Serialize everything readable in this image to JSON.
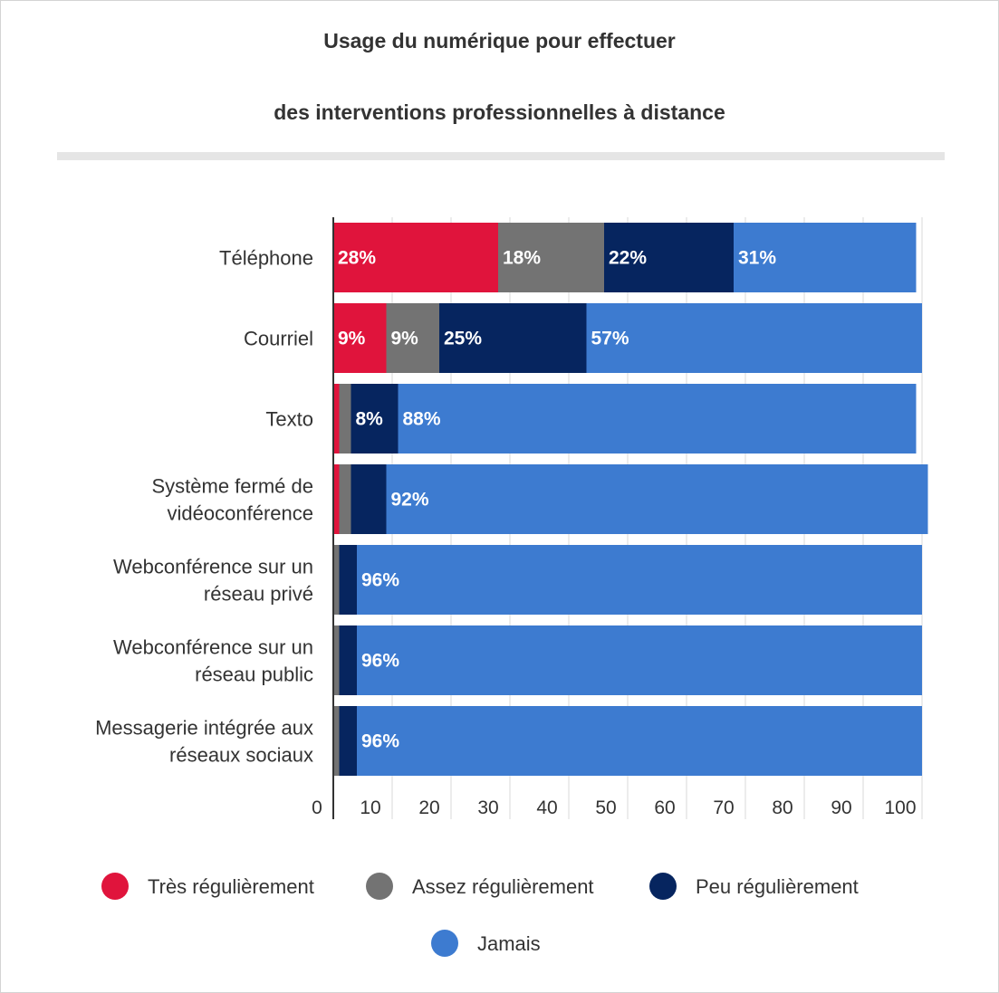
{
  "chart_data": {
    "type": "bar",
    "orientation": "horizontal",
    "stacked": true,
    "title": [
      "Usage du numérique pour effectuer",
      "des interventions professionnelles à distance"
    ],
    "xlabel": "",
    "ylabel": "",
    "xlim": [
      0,
      100
    ],
    "xticks": [
      "0",
      "10",
      "20",
      "30",
      "40",
      "50",
      "60",
      "70",
      "80",
      "90",
      "100"
    ],
    "grid": true,
    "legend_position": "bottom",
    "categories": [
      [
        "Téléphone"
      ],
      [
        "Courriel"
      ],
      [
        "Texto"
      ],
      [
        "Système fermé de",
        "vidéoconférence"
      ],
      [
        "Webconférence sur un",
        "réseau privé"
      ],
      [
        "Webconférence sur un",
        "réseau public"
      ],
      [
        "Messagerie intégrée aux",
        "réseaux sociaux"
      ]
    ],
    "series": [
      {
        "name": "Très régulièrement",
        "color": "#e0143c",
        "values": [
          28,
          9,
          1,
          1,
          0,
          0,
          0
        ],
        "labels": [
          "28%",
          "9%",
          "",
          "",
          "",
          "",
          ""
        ]
      },
      {
        "name": "Assez régulièrement",
        "color": "#737373",
        "values": [
          18,
          9,
          2,
          2,
          1,
          1,
          1
        ],
        "labels": [
          "18%",
          "9%",
          "",
          "",
          "",
          "",
          ""
        ]
      },
      {
        "name": "Peu régulièrement",
        "color": "#06255f",
        "values": [
          22,
          25,
          8,
          6,
          3,
          3,
          3
        ],
        "labels": [
          "22%",
          "25%",
          "8%",
          "",
          "",
          "",
          ""
        ]
      },
      {
        "name": "Jamais",
        "color": "#3d7bd0",
        "values": [
          31,
          57,
          88,
          92,
          96,
          96,
          96
        ],
        "labels": [
          "31%",
          "57%",
          "88%",
          "92%",
          "96%",
          "96%",
          "96%"
        ]
      }
    ]
  }
}
